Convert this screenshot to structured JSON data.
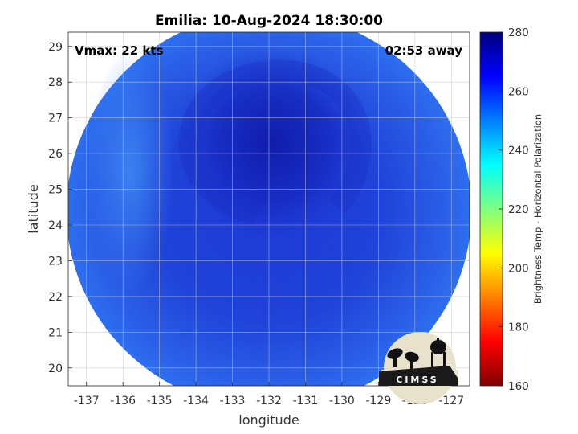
{
  "chart_data": {
    "type": "heatmap",
    "title": "Emilia: 10-Aug-2024 18:30:00",
    "xlabel": "longitude",
    "ylabel": "latitude",
    "xlim": [
      -137.5,
      -126.5
    ],
    "ylim": [
      19.5,
      29.4
    ],
    "xticks": [
      -137,
      -136,
      -135,
      -134,
      -133,
      -132,
      -131,
      -130,
      -129,
      -128,
      -127
    ],
    "yticks": [
      20,
      21,
      22,
      23,
      24,
      25,
      26,
      27,
      28,
      29
    ],
    "grid": true,
    "annotations": {
      "vmax": "Vmax: 22 kts",
      "time_offset": "02:53 away"
    },
    "swath": {
      "center_lon": -132.0,
      "center_lat": 24.4,
      "radius_deg": 5.55,
      "storm_center_lon": -131.9,
      "storm_center_lat": 26.3
    },
    "colorbar": {
      "label": "Brightness Temp - Horizontal Polarization",
      "min": 160,
      "max": 280,
      "ticks": [
        160,
        180,
        200,
        220,
        240,
        260,
        280
      ],
      "colormap": "jet",
      "stops": [
        "#7f0000",
        "#ff0000",
        "#ffff00",
        "#00ffff",
        "#0000ff",
        "#00007f"
      ]
    },
    "field_range_typical": [
      245,
      272
    ]
  },
  "logo": {
    "text": "CIMSS",
    "icon": "cimss-logo"
  }
}
